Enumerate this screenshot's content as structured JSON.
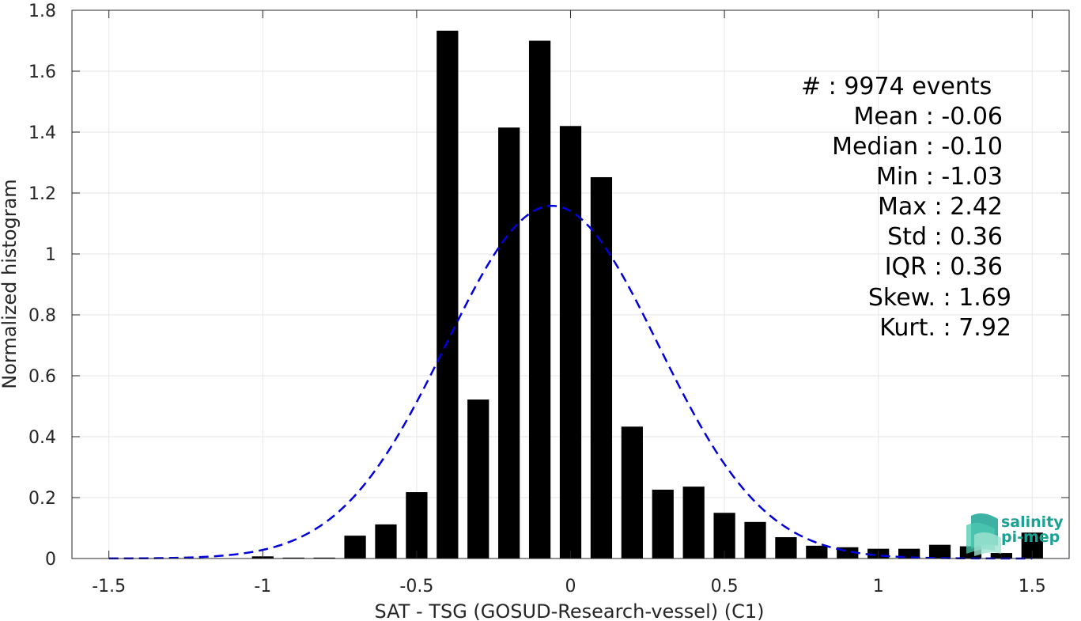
{
  "chart_data": {
    "type": "bar",
    "xlabel": "SAT - TSG (GOSUD-Research-vessel) (C1)",
    "ylabel": "Normalized histogram",
    "xlim": [
      -1.62,
      1.62
    ],
    "ylim": [
      0,
      1.8
    ],
    "x_ticks": [
      -1.5,
      -1,
      -0.5,
      0,
      0.5,
      1,
      1.5
    ],
    "x_tick_labels": [
      "-1.5",
      "-1",
      "-0.5",
      "0",
      "0.5",
      "1",
      "1.5"
    ],
    "y_ticks": [
      0,
      0.2,
      0.4,
      0.6,
      0.8,
      1,
      1.2,
      1.4,
      1.6,
      1.8
    ],
    "y_tick_labels": [
      "0",
      "0.2",
      "0.4",
      "0.6",
      "0.8",
      "1",
      "1.2",
      "1.4",
      "1.6",
      "1.8"
    ],
    "grid": true,
    "bar_color": "#000000",
    "bar_width": 0.07,
    "bars": {
      "x": [
        -1.0,
        -0.9,
        -0.8,
        -0.7,
        -0.6,
        -0.5,
        -0.4,
        -0.3,
        -0.2,
        -0.1,
        0.0,
        0.1,
        0.2,
        0.3,
        0.4,
        0.5,
        0.6,
        0.7,
        0.8,
        0.9,
        1.0,
        1.1,
        1.2,
        1.3,
        1.4,
        1.5
      ],
      "values": [
        0.007,
        0.003,
        0.003,
        0.075,
        0.112,
        0.218,
        1.733,
        0.522,
        1.415,
        1.7,
        1.42,
        1.252,
        0.433,
        0.226,
        0.236,
        0.15,
        0.12,
        0.07,
        0.042,
        0.037,
        0.032,
        0.032,
        0.045,
        0.04,
        0.018,
        0.085
      ]
    },
    "fit_curve": {
      "name": "Gaussian fit",
      "color": "#0000dd",
      "style": "dashed",
      "mean": -0.06,
      "std": 0.345,
      "peak": 1.158,
      "x_range": [
        -1.5,
        1.5
      ]
    }
  },
  "stats": {
    "line1": "#  : 9974 events",
    "line2": "Mean : -0.06",
    "line3": "Median : -0.10",
    "line4": "Min : -1.03",
    "line5": "Max : 2.42",
    "line6": "Std : 0.36",
    "line7": "IQR : 0.36",
    "line8": "Skew. : 1.69",
    "line9": "Kurt. : 7.92"
  },
  "logo": {
    "line1": "salinity",
    "line2": "pi-mep",
    "color": "#1aa394"
  }
}
